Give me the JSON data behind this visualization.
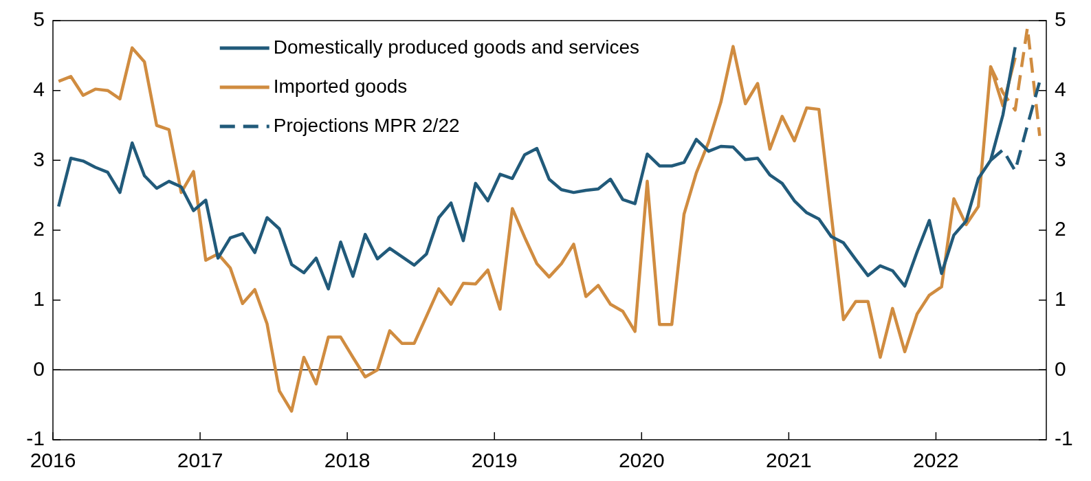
{
  "chart_data": {
    "type": "line",
    "xlim": [
      "2016-01-01",
      "2022-10-01"
    ],
    "xticks": [
      "2016",
      "2017",
      "2018",
      "2019",
      "2020",
      "2021",
      "2022"
    ],
    "ylim": [
      -1,
      5
    ],
    "yticks": [
      -1,
      0,
      1,
      2,
      3,
      4,
      5
    ],
    "y2lim": [
      -1,
      5
    ],
    "y2ticks": [
      -1,
      0,
      1,
      2,
      3,
      4,
      5
    ],
    "grid": false,
    "legend": "top left",
    "marker": "none",
    "ref_lines": [
      {
        "axis": "y",
        "value": 0,
        "color": "#000000"
      }
    ],
    "series": [
      {
        "name": "Domestically produced goods and services",
        "color": "#215a7a",
        "line_style": "solid",
        "x": [
          "2016-01-15",
          "2016-02-15",
          "2016-03-15",
          "2016-04-15",
          "2016-05-15",
          "2016-06-15",
          "2016-07-15",
          "2016-08-15",
          "2016-09-15",
          "2016-10-15",
          "2016-11-15",
          "2016-12-15",
          "2017-01-15",
          "2017-02-15",
          "2017-03-15",
          "2017-04-15",
          "2017-05-15",
          "2017-06-15",
          "2017-07-15",
          "2017-08-15",
          "2017-09-15",
          "2017-10-15",
          "2017-11-15",
          "2017-12-15",
          "2018-01-15",
          "2018-02-15",
          "2018-03-15",
          "2018-04-15",
          "2018-05-15",
          "2018-06-15",
          "2018-07-15",
          "2018-08-15",
          "2018-09-15",
          "2018-10-15",
          "2018-11-15",
          "2018-12-15",
          "2019-01-15",
          "2019-02-15",
          "2019-03-15",
          "2019-04-15",
          "2019-05-15",
          "2019-06-15",
          "2019-07-15",
          "2019-08-15",
          "2019-09-15",
          "2019-10-15",
          "2019-11-15",
          "2019-12-15",
          "2020-01-15",
          "2020-02-15",
          "2020-03-15",
          "2020-04-15",
          "2020-05-15",
          "2020-06-15",
          "2020-07-15",
          "2020-08-15",
          "2020-09-15",
          "2020-10-15",
          "2020-11-15",
          "2020-12-15",
          "2021-01-15",
          "2021-02-15",
          "2021-03-15",
          "2021-04-15",
          "2021-05-15",
          "2021-06-15",
          "2021-07-15",
          "2021-08-15",
          "2021-09-15",
          "2021-10-15",
          "2021-11-15",
          "2021-12-15",
          "2022-01-15",
          "2022-02-15",
          "2022-03-15",
          "2022-04-15",
          "2022-05-15",
          "2022-06-15",
          "2022-07-15"
        ],
        "values": [
          2.34,
          3.03,
          2.99,
          2.9,
          2.83,
          2.54,
          3.25,
          2.78,
          2.6,
          2.7,
          2.62,
          2.28,
          2.43,
          1.6,
          1.89,
          1.95,
          1.68,
          2.18,
          2.02,
          1.51,
          1.39,
          1.6,
          1.16,
          1.83,
          1.34,
          1.94,
          1.59,
          1.74,
          1.62,
          1.5,
          1.66,
          2.18,
          2.39,
          1.85,
          2.67,
          2.42,
          2.8,
          2.74,
          3.08,
          3.17,
          2.73,
          2.58,
          2.54,
          2.57,
          2.59,
          2.73,
          2.44,
          2.38,
          3.09,
          2.92,
          2.92,
          2.97,
          3.3,
          3.13,
          3.2,
          3.19,
          3.01,
          3.03,
          2.79,
          2.67,
          2.42,
          2.25,
          2.16,
          1.91,
          1.82,
          1.58,
          1.35,
          1.49,
          1.42,
          1.2,
          1.69,
          2.14,
          1.38,
          1.93,
          2.13,
          2.74,
          3.0,
          3.65,
          4.62
        ]
      },
      {
        "name": "Imported goods",
        "color": "#d08c40",
        "line_style": "solid",
        "x": [
          "2016-01-15",
          "2016-02-15",
          "2016-03-15",
          "2016-04-15",
          "2016-05-15",
          "2016-06-15",
          "2016-07-15",
          "2016-08-15",
          "2016-09-15",
          "2016-10-15",
          "2016-11-15",
          "2016-12-15",
          "2017-01-15",
          "2017-02-15",
          "2017-03-15",
          "2017-04-15",
          "2017-05-15",
          "2017-06-15",
          "2017-07-15",
          "2017-08-15",
          "2017-09-15",
          "2017-10-15",
          "2017-11-15",
          "2017-12-15",
          "2018-01-15",
          "2018-02-15",
          "2018-03-15",
          "2018-04-15",
          "2018-05-15",
          "2018-06-15",
          "2018-07-15",
          "2018-08-15",
          "2018-09-15",
          "2018-10-15",
          "2018-11-15",
          "2018-12-15",
          "2019-01-15",
          "2019-02-15",
          "2019-03-15",
          "2019-04-15",
          "2019-05-15",
          "2019-06-15",
          "2019-07-15",
          "2019-08-15",
          "2019-09-15",
          "2019-10-15",
          "2019-11-15",
          "2019-12-15",
          "2020-01-15",
          "2020-02-15",
          "2020-03-15",
          "2020-04-15",
          "2020-05-15",
          "2020-06-15",
          "2020-07-15",
          "2020-08-15",
          "2020-09-15",
          "2020-10-15",
          "2020-11-15",
          "2020-12-15",
          "2021-01-15",
          "2021-02-15",
          "2021-03-15",
          "2021-04-15",
          "2021-05-15",
          "2021-06-15",
          "2021-07-15",
          "2021-08-15",
          "2021-09-15",
          "2021-10-15",
          "2021-11-15",
          "2021-12-15",
          "2022-01-15",
          "2022-02-15",
          "2022-03-15",
          "2022-04-15",
          "2022-05-15",
          "2022-06-15",
          "2022-07-15"
        ],
        "values": [
          4.13,
          4.2,
          3.93,
          4.02,
          4.0,
          3.88,
          4.61,
          4.41,
          3.5,
          3.44,
          2.54,
          2.84,
          1.57,
          1.66,
          1.46,
          0.95,
          1.15,
          0.66,
          -0.3,
          -0.59,
          0.18,
          -0.2,
          0.47,
          0.47,
          0.18,
          -0.1,
          0.0,
          0.56,
          0.38,
          0.38,
          0.77,
          1.16,
          0.94,
          1.24,
          1.23,
          1.43,
          0.87,
          2.31,
          1.9,
          1.52,
          1.33,
          1.52,
          1.8,
          1.05,
          1.21,
          0.94,
          0.84,
          0.55,
          2.7,
          0.65,
          0.65,
          2.23,
          2.82,
          3.26,
          3.83,
          4.63,
          3.81,
          4.1,
          3.16,
          3.63,
          3.28,
          3.75,
          3.73,
          2.23,
          0.72,
          0.98,
          0.98,
          0.18,
          0.88,
          0.26,
          0.8,
          1.07,
          1.19,
          2.45,
          2.08,
          2.34,
          4.34,
          3.78,
          4.47
        ]
      },
      {
        "name": "Projections MPR 2/22",
        "color": "#215a7a",
        "line_style": "dashed",
        "x": [
          "2022-05-15",
          "2022-06-15",
          "2022-07-15",
          "2022-08-15",
          "2022-09-15"
        ],
        "values": [
          3.0,
          3.15,
          2.85,
          3.5,
          4.13
        ]
      },
      {
        "color": "#d08c40",
        "line_style": "dashed",
        "x": [
          "2022-05-15",
          "2022-06-15",
          "2022-07-15",
          "2022-08-15",
          "2022-09-15"
        ],
        "values": [
          4.34,
          3.97,
          3.72,
          4.9,
          3.35
        ]
      }
    ]
  }
}
